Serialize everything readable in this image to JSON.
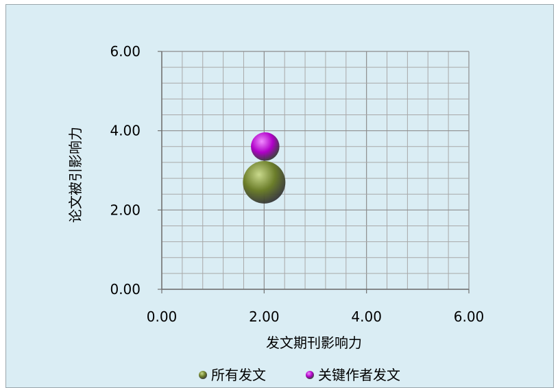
{
  "chart_data": {
    "type": "bubble",
    "xlabel": "发文期刊影响力",
    "ylabel": "论文被引影响力",
    "xlim": [
      0,
      6
    ],
    "ylim": [
      0,
      6
    ],
    "major_ticks": [
      "0.00",
      "2.00",
      "4.00",
      "6.00"
    ],
    "major_tick_values": [
      0,
      2,
      4,
      6
    ],
    "grid": true,
    "minor_grid_step": 0.4,
    "legend_position": "bottom",
    "series": [
      {
        "name": "所有发文",
        "color": "#6b7d2a",
        "highlight": "#c9d98c",
        "points": [
          {
            "x": 2.0,
            "y": 2.7,
            "size": 1.0
          }
        ]
      },
      {
        "name": "关键作者发文",
        "color": "#b000c8",
        "highlight": "#f08cff",
        "points": [
          {
            "x": 2.02,
            "y": 3.6,
            "size": 0.45
          }
        ]
      }
    ]
  }
}
